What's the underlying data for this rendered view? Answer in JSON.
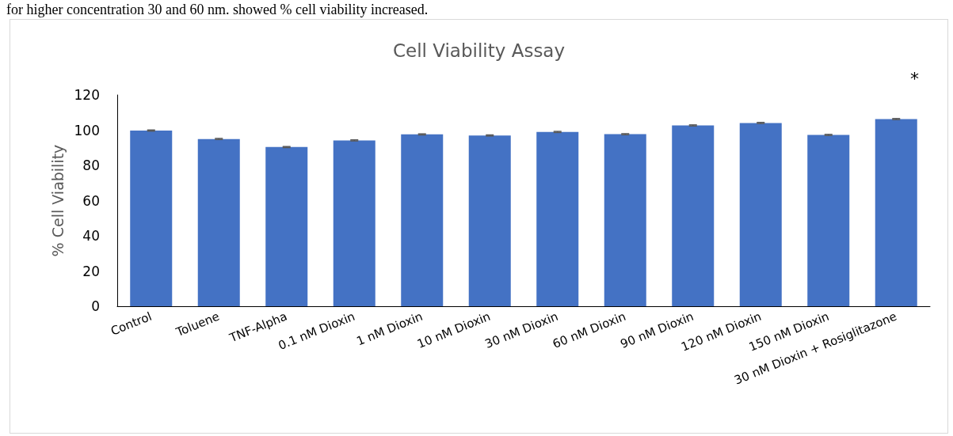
{
  "chart_data": {
    "type": "bar",
    "title": "Cell Viability Assay",
    "ylabel": "% Cell Viability",
    "categories": [
      "Control",
      "Toluene",
      "TNF-Alpha",
      "0.1 nM Dioxin",
      "1 nM Dioxin",
      "10 nM Dioxin",
      "30 nM Dioxin",
      "60 nM Dioxin",
      "90 nM Dioxin",
      "120 nM Dioxin",
      "150 nM Dioxin",
      "30 nM Dioxin + Rosiglitazone"
    ],
    "values": [
      99.8,
      95.0,
      90.4,
      94.2,
      97.6,
      97.0,
      99.0,
      97.7,
      102.7,
      104.1,
      97.3,
      106.3
    ],
    "errors": [
      0.3,
      0.3,
      0.3,
      0.3,
      0.3,
      0.3,
      0.3,
      0.3,
      0.3,
      0.3,
      0.3,
      0.3
    ],
    "color": "#4472c4",
    "ylim": [
      0,
      120
    ],
    "yticks": [
      0,
      20,
      40,
      60,
      80,
      100,
      120
    ],
    "grid": false,
    "annotations": [
      "for higher concentration 30 and 60 nm. showed % cell viability increased.",
      "*"
    ]
  }
}
